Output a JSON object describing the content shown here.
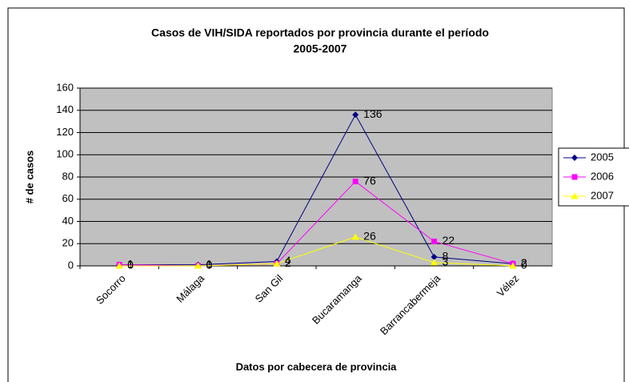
{
  "chart_data": {
    "type": "line",
    "title": [
      "Casos de VIH/SIDA reportados por provincia durante el período",
      "2005-2007"
    ],
    "x_label": "Datos por cabecera de provincia",
    "y_label": "# de casos",
    "categories": [
      "Socorro",
      "Málaga",
      "San Gil",
      "Bucaramanga",
      "Barrancabermeja",
      "Vélez"
    ],
    "series": [
      {
        "name": "2005",
        "color": "#000080",
        "marker": "diamond",
        "values": [
          1,
          1,
          4,
          136,
          8,
          2
        ]
      },
      {
        "name": "2006",
        "color": "#ff00ff",
        "marker": "square",
        "values": [
          1,
          0,
          2,
          76,
          22,
          2
        ]
      },
      {
        "name": "2007",
        "color": "#ffff00",
        "marker": "triangle",
        "values": [
          0,
          0,
          2,
          26,
          3,
          0
        ]
      }
    ],
    "ylim": [
      0,
      160
    ],
    "yticks": [
      0,
      20,
      40,
      60,
      80,
      100,
      120,
      140,
      160
    ],
    "grid": true,
    "legend": "right"
  }
}
